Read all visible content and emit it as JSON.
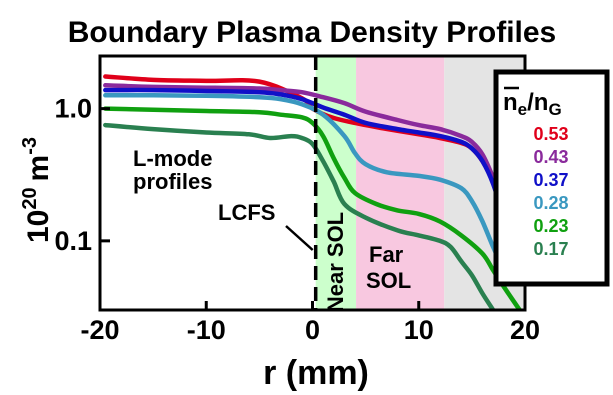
{
  "chart_data": {
    "type": "line",
    "title": "Boundary Plasma Density Profiles",
    "xlabel": "r (mm)",
    "ylabel": "10",
    "ylabel_exp": "20",
    "ylabel_unit": "m",
    "ylabel_unit_exp": "-3",
    "x_scale": "linear",
    "y_scale": "log",
    "xlim": [
      -20,
      20
    ],
    "ylim": [
      0.03,
      2.5
    ],
    "x_ticks": [
      -20,
      -10,
      0,
      10,
      20
    ],
    "x_tick_labels": [
      "-20",
      "-10",
      "0",
      "10",
      "20"
    ],
    "y_ticks": [
      1.0,
      0.1
    ],
    "y_tick_labels": [
      "1.0",
      "0.1"
    ],
    "legend": {
      "title_n": "n",
      "title_sub_e": "e",
      "title_sep": "/n",
      "title_sub_g": "G",
      "placement": "right"
    },
    "regions": [
      {
        "label": "Near SOL",
        "x0": 0.3,
        "x1": 4.1,
        "color": "#ccffcc"
      },
      {
        "label_line1": "Far",
        "label_line2": "SOL",
        "x0": 4.1,
        "x1": 12.4,
        "color": "#f8c8e0"
      },
      {
        "x0": 12.4,
        "x1": 20,
        "color": "#e4e4e4"
      }
    ],
    "annotations": {
      "lmode_line1": "L-mode",
      "lmode_line2": "profiles",
      "lcfs": "LCFS",
      "lcfs_x": 0.3
    },
    "series": [
      {
        "name": "0.53",
        "color": "#e0001a",
        "x": [
          -19.5,
          -15,
          -10,
          -5,
          -1,
          0,
          2,
          5,
          8,
          10,
          12,
          14,
          15,
          16,
          17,
          18,
          19,
          20
        ],
        "y": [
          1.75,
          1.65,
          1.62,
          1.6,
          1.2,
          1.0,
          0.85,
          0.75,
          0.68,
          0.64,
          0.6,
          0.55,
          0.5,
          0.4,
          0.28,
          0.17,
          0.09,
          0.05
        ]
      },
      {
        "name": "0.43",
        "color": "#8a2a9c",
        "x": [
          -19.5,
          -15,
          -10,
          -5,
          -3,
          -1,
          1,
          3,
          5,
          8,
          10,
          12,
          14,
          15,
          16,
          17,
          18
        ],
        "y": [
          1.5,
          1.46,
          1.44,
          1.42,
          1.38,
          1.33,
          1.22,
          1.1,
          0.95,
          0.82,
          0.75,
          0.7,
          0.62,
          0.56,
          0.45,
          0.3,
          0.18
        ]
      },
      {
        "name": "0.37",
        "color": "#1010c8",
        "x": [
          -19.5,
          -15,
          -10,
          -5,
          -3,
          -1,
          1,
          3,
          5,
          8,
          10,
          12,
          14,
          15,
          16,
          17,
          18
        ],
        "y": [
          1.38,
          1.38,
          1.36,
          1.33,
          1.28,
          1.18,
          1.02,
          0.9,
          0.78,
          0.7,
          0.66,
          0.62,
          0.56,
          0.5,
          0.4,
          0.27,
          0.15
        ]
      },
      {
        "name": "0.28",
        "color": "#3a98c0",
        "x": [
          -19.5,
          -15,
          -10,
          -5,
          -3,
          -1,
          1,
          3,
          4,
          5,
          7,
          10,
          12,
          14,
          15,
          16,
          17,
          18
        ],
        "y": [
          1.26,
          1.26,
          1.25,
          1.22,
          1.18,
          1.08,
          0.9,
          0.62,
          0.46,
          0.38,
          0.33,
          0.31,
          0.29,
          0.25,
          0.2,
          0.14,
          0.09,
          0.06
        ]
      },
      {
        "name": "0.23",
        "color": "#10a010",
        "x": [
          -19.5,
          -15,
          -10,
          -5,
          -3,
          -1,
          0,
          1,
          2,
          3,
          4,
          6,
          8,
          10,
          12,
          14,
          16,
          17,
          18,
          19.5
        ],
        "y": [
          1.0,
          0.98,
          0.96,
          0.94,
          0.9,
          0.86,
          0.78,
          0.62,
          0.42,
          0.3,
          0.23,
          0.19,
          0.17,
          0.16,
          0.14,
          0.11,
          0.08,
          0.06,
          0.045,
          0.03
        ]
      },
      {
        "name": "0.17",
        "color": "#2a8050",
        "x": [
          -19.5,
          -15,
          -10,
          -6,
          -4,
          -2,
          -1,
          0,
          1,
          2,
          3,
          5,
          8,
          10,
          12,
          13,
          14,
          15,
          16,
          17
        ],
        "y": [
          0.75,
          0.7,
          0.66,
          0.64,
          0.6,
          0.62,
          0.6,
          0.54,
          0.4,
          0.28,
          0.19,
          0.15,
          0.12,
          0.11,
          0.1,
          0.09,
          0.07,
          0.055,
          0.04,
          0.03
        ]
      }
    ]
  }
}
